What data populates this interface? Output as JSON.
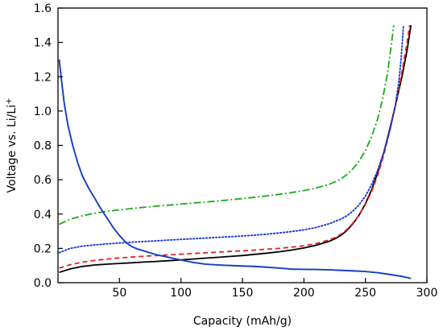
{
  "chart_data": {
    "type": "line",
    "title": "",
    "xlabel": "Capacity (mAh/g)",
    "ylabel": "Voltage vs. Li/Li",
    "ylabel_superscript": "+",
    "xlim": [
      0,
      300
    ],
    "ylim": [
      0,
      1.6
    ],
    "xticks": [
      50,
      100,
      150,
      200,
      250,
      300
    ],
    "yticks": [
      0.0,
      0.2,
      0.4,
      0.6,
      0.8,
      1.0,
      1.2,
      1.4,
      1.6
    ],
    "xtick_labels": [
      "50",
      "100",
      "150",
      "200",
      "250",
      "300"
    ],
    "ytick_labels": [
      "0.0",
      "0.2",
      "0.4",
      "0.6",
      "0.8",
      "1.0",
      "1.2",
      "1.4",
      "1.6"
    ],
    "grid": false,
    "legend": "none",
    "series": [
      {
        "color": "#000000",
        "dash": "solid",
        "points": [
          [
            1,
            0.06
          ],
          [
            10,
            0.08
          ],
          [
            20,
            0.095
          ],
          [
            30,
            0.103
          ],
          [
            40,
            0.108
          ],
          [
            50,
            0.112
          ],
          [
            60,
            0.116
          ],
          [
            70,
            0.12
          ],
          [
            80,
            0.124
          ],
          [
            90,
            0.128
          ],
          [
            100,
            0.133
          ],
          [
            110,
            0.138
          ],
          [
            120,
            0.143
          ],
          [
            130,
            0.148
          ],
          [
            140,
            0.153
          ],
          [
            150,
            0.158
          ],
          [
            160,
            0.165
          ],
          [
            170,
            0.172
          ],
          [
            180,
            0.18
          ],
          [
            190,
            0.19
          ],
          [
            200,
            0.202
          ],
          [
            210,
            0.218
          ],
          [
            220,
            0.24
          ],
          [
            225,
            0.255
          ],
          [
            230,
            0.275
          ],
          [
            235,
            0.305
          ],
          [
            240,
            0.345
          ],
          [
            245,
            0.395
          ],
          [
            250,
            0.46
          ],
          [
            255,
            0.54
          ],
          [
            260,
            0.64
          ],
          [
            265,
            0.76
          ],
          [
            270,
            0.9
          ],
          [
            275,
            1.05
          ],
          [
            280,
            1.21
          ],
          [
            284,
            1.36
          ],
          [
            287,
            1.5
          ]
        ]
      },
      {
        "color": "#e82020",
        "dash": "dashed",
        "points": [
          [
            1,
            0.085
          ],
          [
            10,
            0.105
          ],
          [
            20,
            0.12
          ],
          [
            30,
            0.13
          ],
          [
            40,
            0.138
          ],
          [
            50,
            0.144
          ],
          [
            60,
            0.149
          ],
          [
            70,
            0.154
          ],
          [
            80,
            0.158
          ],
          [
            90,
            0.162
          ],
          [
            100,
            0.166
          ],
          [
            110,
            0.17
          ],
          [
            120,
            0.174
          ],
          [
            130,
            0.178
          ],
          [
            140,
            0.182
          ],
          [
            150,
            0.186
          ],
          [
            160,
            0.19
          ],
          [
            170,
            0.195
          ],
          [
            180,
            0.2
          ],
          [
            190,
            0.207
          ],
          [
            200,
            0.215
          ],
          [
            210,
            0.228
          ],
          [
            220,
            0.248
          ],
          [
            225,
            0.262
          ],
          [
            230,
            0.282
          ],
          [
            235,
            0.31
          ],
          [
            240,
            0.348
          ],
          [
            245,
            0.395
          ],
          [
            250,
            0.455
          ],
          [
            255,
            0.53
          ],
          [
            260,
            0.625
          ],
          [
            265,
            0.745
          ],
          [
            270,
            0.89
          ],
          [
            275,
            1.05
          ],
          [
            279,
            1.2
          ],
          [
            283,
            1.36
          ],
          [
            286,
            1.5
          ]
        ]
      },
      {
        "color": "#1a3ad6",
        "dash": "dotted",
        "points": [
          [
            1,
            0.175
          ],
          [
            10,
            0.2
          ],
          [
            20,
            0.213
          ],
          [
            30,
            0.22
          ],
          [
            40,
            0.226
          ],
          [
            50,
            0.231
          ],
          [
            60,
            0.236
          ],
          [
            70,
            0.24
          ],
          [
            80,
            0.244
          ],
          [
            90,
            0.248
          ],
          [
            100,
            0.252
          ],
          [
            110,
            0.256
          ],
          [
            120,
            0.26
          ],
          [
            130,
            0.264
          ],
          [
            140,
            0.268
          ],
          [
            150,
            0.272
          ],
          [
            160,
            0.277
          ],
          [
            170,
            0.283
          ],
          [
            180,
            0.29
          ],
          [
            190,
            0.298
          ],
          [
            200,
            0.308
          ],
          [
            210,
            0.322
          ],
          [
            220,
            0.342
          ],
          [
            230,
            0.37
          ],
          [
            235,
            0.39
          ],
          [
            240,
            0.418
          ],
          [
            245,
            0.455
          ],
          [
            250,
            0.505
          ],
          [
            255,
            0.57
          ],
          [
            260,
            0.655
          ],
          [
            265,
            0.76
          ],
          [
            270,
            0.89
          ],
          [
            274,
            1.02
          ],
          [
            277,
            1.16
          ],
          [
            279,
            1.3
          ],
          [
            281,
            1.5
          ]
        ]
      },
      {
        "color": "#1aaa1a",
        "dash": "dashdot",
        "points": [
          [
            1,
            0.34
          ],
          [
            10,
            0.37
          ],
          [
            20,
            0.39
          ],
          [
            30,
            0.405
          ],
          [
            40,
            0.416
          ],
          [
            50,
            0.424
          ],
          [
            60,
            0.432
          ],
          [
            70,
            0.439
          ],
          [
            80,
            0.446
          ],
          [
            90,
            0.452
          ],
          [
            100,
            0.458
          ],
          [
            110,
            0.464
          ],
          [
            120,
            0.47
          ],
          [
            130,
            0.476
          ],
          [
            140,
            0.483
          ],
          [
            150,
            0.49
          ],
          [
            160,
            0.498
          ],
          [
            170,
            0.506
          ],
          [
            180,
            0.515
          ],
          [
            190,
            0.525
          ],
          [
            200,
            0.537
          ],
          [
            210,
            0.552
          ],
          [
            220,
            0.572
          ],
          [
            225,
            0.586
          ],
          [
            230,
            0.604
          ],
          [
            235,
            0.63
          ],
          [
            240,
            0.665
          ],
          [
            245,
            0.71
          ],
          [
            250,
            0.77
          ],
          [
            255,
            0.85
          ],
          [
            260,
            0.955
          ],
          [
            264,
            1.07
          ],
          [
            268,
            1.22
          ],
          [
            271,
            1.38
          ],
          [
            273,
            1.5
          ]
        ]
      },
      {
        "color": "#1aaa1a",
        "dash": "solid",
        "points": [
          [
            1,
            1.3
          ],
          [
            3,
            1.17
          ],
          [
            5,
            1.05
          ],
          [
            8,
            0.92
          ],
          [
            12,
            0.8
          ],
          [
            16,
            0.7
          ],
          [
            20,
            0.62
          ],
          [
            25,
            0.55
          ],
          [
            30,
            0.49
          ],
          [
            35,
            0.43
          ],
          [
            40,
            0.375
          ],
          [
            45,
            0.32
          ],
          [
            50,
            0.275
          ],
          [
            55,
            0.235
          ],
          [
            60,
            0.21
          ],
          [
            65,
            0.195
          ],
          [
            70,
            0.185
          ],
          [
            80,
            0.163
          ],
          [
            90,
            0.148
          ],
          [
            100,
            0.132
          ],
          [
            110,
            0.118
          ],
          [
            120,
            0.108
          ],
          [
            130,
            0.103
          ],
          [
            140,
            0.1
          ],
          [
            150,
            0.097
          ],
          [
            160,
            0.095
          ],
          [
            170,
            0.09
          ],
          [
            180,
            0.085
          ],
          [
            190,
            0.079
          ],
          [
            200,
            0.078
          ],
          [
            210,
            0.077
          ],
          [
            220,
            0.075
          ],
          [
            230,
            0.072
          ],
          [
            240,
            0.069
          ],
          [
            250,
            0.065
          ],
          [
            260,
            0.058
          ],
          [
            270,
            0.048
          ],
          [
            280,
            0.036
          ],
          [
            287,
            0.025
          ]
        ]
      },
      {
        "color": "#1a3ad6",
        "dash": "solid",
        "points": [
          [
            1,
            1.3
          ],
          [
            3,
            1.17
          ],
          [
            5,
            1.05
          ],
          [
            8,
            0.92
          ],
          [
            12,
            0.8
          ],
          [
            16,
            0.7
          ],
          [
            20,
            0.62
          ],
          [
            25,
            0.55
          ],
          [
            30,
            0.49
          ],
          [
            35,
            0.43
          ],
          [
            40,
            0.375
          ],
          [
            45,
            0.32
          ],
          [
            50,
            0.275
          ],
          [
            55,
            0.235
          ],
          [
            60,
            0.21
          ],
          [
            65,
            0.195
          ],
          [
            70,
            0.185
          ],
          [
            80,
            0.163
          ],
          [
            90,
            0.148
          ],
          [
            100,
            0.132
          ],
          [
            110,
            0.118
          ],
          [
            120,
            0.108
          ],
          [
            130,
            0.103
          ],
          [
            140,
            0.1
          ],
          [
            150,
            0.097
          ],
          [
            160,
            0.095
          ],
          [
            170,
            0.09
          ],
          [
            180,
            0.085
          ],
          [
            190,
            0.079
          ],
          [
            200,
            0.078
          ],
          [
            210,
            0.077
          ],
          [
            220,
            0.075
          ],
          [
            230,
            0.072
          ],
          [
            240,
            0.069
          ],
          [
            250,
            0.065
          ],
          [
            260,
            0.058
          ],
          [
            270,
            0.048
          ],
          [
            280,
            0.036
          ],
          [
            287,
            0.025
          ]
        ]
      }
    ]
  }
}
